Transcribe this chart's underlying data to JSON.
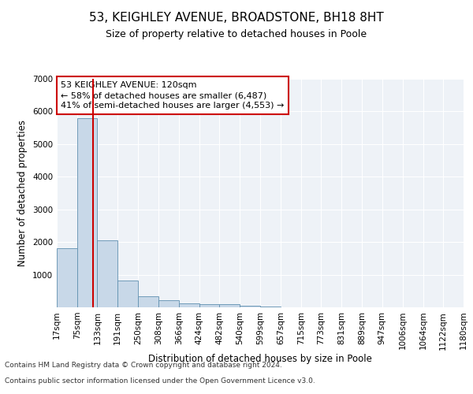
{
  "title1": "53, KEIGHLEY AVENUE, BROADSTONE, BH18 8HT",
  "title2": "Size of property relative to detached houses in Poole",
  "xlabel": "Distribution of detached houses by size in Poole",
  "ylabel": "Number of detached properties",
  "annotation_line1": "53 KEIGHLEY AVENUE: 120sqm",
  "annotation_line2": "← 58% of detached houses are smaller (6,487)",
  "annotation_line3": "41% of semi-detached houses are larger (4,553) →",
  "footer1": "Contains HM Land Registry data © Crown copyright and database right 2024.",
  "footer2": "Contains public sector information licensed under the Open Government Licence v3.0.",
  "bin_edges": [
    17,
    75,
    133,
    191,
    250,
    308,
    366,
    424,
    482,
    540,
    599,
    657,
    715,
    773,
    831,
    889,
    947,
    1006,
    1064,
    1122,
    1180
  ],
  "bar_heights": [
    1800,
    5800,
    2050,
    820,
    350,
    210,
    120,
    90,
    90,
    50,
    30,
    10,
    5,
    2,
    1,
    1,
    0,
    0,
    0,
    0
  ],
  "bar_color": "#c8d8e8",
  "bar_edge_color": "#6090b0",
  "red_line_x": 120,
  "red_line_color": "#cc0000",
  "ylim": [
    0,
    7000
  ],
  "yticks": [
    0,
    1000,
    2000,
    3000,
    4000,
    5000,
    6000,
    7000
  ],
  "background_color": "#eef2f7",
  "grid_color": "#ffffff",
  "title1_fontsize": 11,
  "title2_fontsize": 9,
  "xlabel_fontsize": 8.5,
  "ylabel_fontsize": 8.5,
  "tick_fontsize": 7.5,
  "annotation_fontsize": 8,
  "footer_fontsize": 6.5
}
